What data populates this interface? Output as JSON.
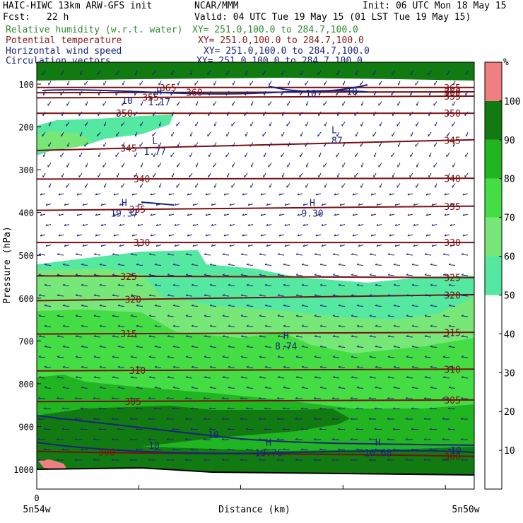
{
  "header": {
    "left_line1": "HAIC-HIWC 13km ARW-GFS init",
    "center_line1": "NCAR/MMM",
    "right_line1": "Init: 06 UTC Mon 18 May 15",
    "fcst_label": "Fcst:",
    "fcst_value": "22 h",
    "valid": "Valid: 04 UTC Tue 19 May 15 (01 LST Tue 19 May 15)",
    "fields": [
      {
        "label": "Relative humidity (w.r.t. water)",
        "xy": "XY= 251.0,100.0 to 284.7,100.0",
        "color": "#2e8b2e"
      },
      {
        "label": "Potential temperature",
        "xy": "XY= 251.0,100.0 to 284.7,100.0",
        "color": "#8b1a1a"
      },
      {
        "label": "Horizontal wind speed",
        "xy": "XY= 251.0,100.0 to 284.7,100.0",
        "color": "#1a237e"
      },
      {
        "label": "Circulation vectors",
        "xy": "XY= 251.0,100.0 to 284.7,100.0",
        "color": "#1a237e"
      }
    ]
  },
  "chart_data": {
    "type": "heatmap",
    "ylabel": "Pressure (hPa)",
    "xlabel": "Distance (km)",
    "x_tick_labels": [
      "0"
    ],
    "x_end_labels": [
      "5n54w",
      "5n50w"
    ],
    "y_ticks": [
      100,
      200,
      300,
      400,
      500,
      600,
      700,
      800,
      900,
      1000
    ],
    "ylim": [
      1100,
      60
    ],
    "colorbar": {
      "unit": "%",
      "ticks": [
        10,
        20,
        30,
        40,
        50,
        60,
        70,
        80,
        90,
        100
      ],
      "bands": [
        {
          "from": 50,
          "to": 60,
          "color": "#55e8a0"
        },
        {
          "from": 60,
          "to": 70,
          "color": "#77e877"
        },
        {
          "from": 70,
          "to": 80,
          "color": "#44dd44"
        },
        {
          "from": 80,
          "to": 90,
          "color": "#22b522"
        },
        {
          "from": 90,
          "to": 100,
          "color": "#117a11"
        },
        {
          "from": 100,
          "to": 110,
          "color": "#f08080"
        }
      ]
    },
    "theta_contours": [
      {
        "value": 300,
        "p": [
          958,
          970
        ]
      },
      {
        "value": 305,
        "p": [
          842,
          838
        ]
      },
      {
        "value": 310,
        "p": [
          770,
          766
        ]
      },
      {
        "value": 315,
        "p": [
          684,
          680
        ]
      },
      {
        "value": 320,
        "p": [
          606,
          592
        ]
      },
      {
        "value": 325,
        "p": [
          548,
          552
        ]
      },
      {
        "value": 330,
        "p": [
          470,
          470
        ]
      },
      {
        "value": 335,
        "p": [
          395,
          385
        ]
      },
      {
        "value": 340,
        "p": [
          322,
          320
        ]
      },
      {
        "value": 345,
        "p": [
          255,
          230
        ]
      },
      {
        "value": 350,
        "p": [
          168,
          168
        ]
      },
      {
        "value": 355,
        "p": [
          132,
          128
        ]
      },
      {
        "value": 360,
        "p": [
          120,
          118
        ]
      },
      {
        "value": 365,
        "p": [
          108,
          108
        ]
      }
    ],
    "theta_labels": [
      "300",
      "305",
      "310",
      "315",
      "320",
      "325",
      "330",
      "335",
      "340",
      "345",
      "350",
      "355",
      "360",
      "365"
    ],
    "wind_contour_labels": [
      "10",
      "10",
      "10",
      "10",
      "10",
      "10"
    ],
    "extrema": [
      {
        "kind": "L",
        "value": "1.77",
        "x": 0.27,
        "p": 240
      },
      {
        "kind": "L",
        "value": ".87",
        "x": 0.68,
        "p": 215
      },
      {
        "kind": "H",
        "value": "19.37",
        "x": 0.2,
        "p": 385
      },
      {
        "kind": "H",
        "value": "9.30",
        "x": 0.63,
        "p": 385
      },
      {
        "kind": "H",
        "value": "8.74",
        "x": 0.57,
        "p": 695
      },
      {
        "kind": "H",
        "value": "10.76",
        "x": 0.53,
        "p": 945
      },
      {
        "kind": "H",
        "value": "10.68",
        "x": 0.78,
        "p": 945
      },
      {
        "kind": "H",
        "value": "1.17",
        "x": 0.28,
        "p": 125
      }
    ]
  }
}
